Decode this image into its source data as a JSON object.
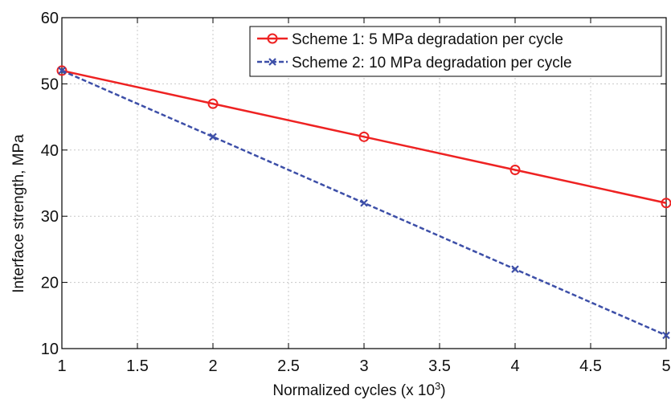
{
  "chart_data": {
    "type": "line",
    "xlabel": "Normalized cycles (x 10",
    "xlabel_superscript": "3",
    "xlabel_suffix": ")",
    "ylabel": "Interface strength, MPa",
    "xlim": [
      1,
      5
    ],
    "ylim": [
      10,
      60
    ],
    "x_ticks": [
      1,
      1.5,
      2,
      2.5,
      3,
      3.5,
      4,
      4.5,
      5
    ],
    "y_ticks": [
      10,
      20,
      30,
      40,
      50,
      60
    ],
    "grid": true,
    "legend_position": "top-right",
    "series": [
      {
        "name": "Scheme 1: 5 MPa degradation per cycle",
        "color": "#ee2222",
        "marker": "circle",
        "line_style": "solid",
        "x": [
          1,
          2,
          3,
          4,
          5
        ],
        "values": [
          52,
          47,
          42,
          37,
          32
        ]
      },
      {
        "name": "Scheme 2: 10 MPa degradation per cycle",
        "color": "#3d4fa8",
        "marker": "x",
        "line_style": "dashed",
        "x": [
          1,
          2,
          3,
          4,
          5
        ],
        "values": [
          52,
          42,
          32,
          22,
          12
        ]
      }
    ]
  }
}
